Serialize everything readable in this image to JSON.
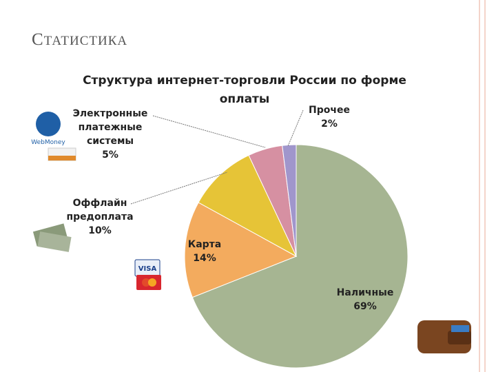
{
  "slide_title": "СТАТИСТИКА",
  "chart_data": {
    "type": "pie",
    "title": "Структура интернет-торговли России по форме оплаты",
    "categories": [
      "Наличные",
      "Карта",
      "Оффлайн предоплата",
      "Электронные платежные системы",
      "Прочее"
    ],
    "values": [
      69,
      14,
      10,
      5,
      2
    ],
    "value_labels": [
      "69%",
      "14%",
      "10%",
      "5%",
      "2%"
    ],
    "colors": [
      "#a6b592",
      "#f3ab5e",
      "#e6c437",
      "#d690a2",
      "#a096cc"
    ]
  }
}
